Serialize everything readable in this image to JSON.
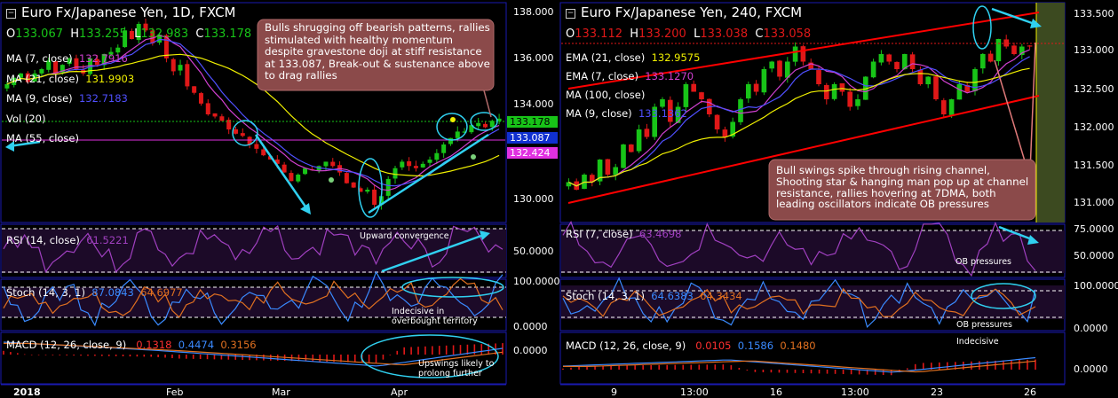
{
  "colors": {
    "bg": "#000000",
    "border": "#1a1ab0",
    "grid": "#ffffff",
    "up": "#18c418",
    "down": "#e01818",
    "ma7": "#d040d0",
    "ma21": "#b070c0",
    "ma9": "#5050ff",
    "ma55": "#f0f000",
    "callout": "#8b4a4a",
    "cyan": "#30d0f0",
    "channel": "#ff0000",
    "panel": "#1c0a28"
  },
  "left_chart": {
    "title": "Euro Fx/Japanese Yen, 1D, FXCM",
    "ohlc": {
      "o_label": "O",
      "o": "133.067",
      "h_label": "H",
      "h": "133.255",
      "l_label": "L",
      "l": "132.983",
      "c_label": "C",
      "c": "133.178"
    },
    "legend": [
      {
        "label": "MA (7, close)",
        "value": "132.7916",
        "color": "#d040d0"
      },
      {
        "label": "MA (21, close)",
        "value": "131.9903",
        "color": "#f0f000"
      },
      {
        "label": "MA (9, close)",
        "value": "132.7183",
        "color": "#5050ff"
      },
      {
        "label": "Vol (20)",
        "value": "",
        "color": "#ffffff"
      },
      {
        "label": "MA (55, close)",
        "value": "",
        "color": "#ffffff"
      }
    ],
    "callout": "Bulls shrugging off bearish patterns, rallies stimulated with healthy momentum despite gravestone doji at stiff resistance at 133.087, Break-out & sustenance above to drag rallies",
    "price_ticks": [
      "138.000",
      "136.000",
      "134.000",
      "130.000"
    ],
    "price_tags": [
      {
        "label": "133.178",
        "color": "#18c418"
      },
      {
        "label": "133.087",
        "color": "#1030d0"
      },
      {
        "label": "132.424",
        "color": "#e030e0"
      }
    ],
    "x_ticks": [
      "2018",
      "Feb",
      "Mar",
      "Apr"
    ],
    "rsi": {
      "label": "RSI (14, close)",
      "value": "61.5221",
      "note": "Upward convergence",
      "ticks": [
        "50.0000"
      ]
    },
    "stoch": {
      "label": "Stoch (14, 3, 1)",
      "k": "87.0843",
      "d": "64.6977",
      "note": "Indecisive in overbought territory",
      "ticks": [
        "100.0000",
        "0.0000"
      ]
    },
    "macd": {
      "label": "MACD (12, 26, close, 9)",
      "v1": "0.1318",
      "v2": "0.4474",
      "v3": "0.3156",
      "note": "Upswings likely to prolong further",
      "ticks": [
        "0.0000"
      ]
    }
  },
  "right_chart": {
    "title": "Euro Fx/Japanese Yen, 240, FXCM",
    "ohlc": {
      "o_label": "O",
      "o": "133.112",
      "h_label": "H",
      "h": "133.200",
      "l_label": "L",
      "l": "133.038",
      "c_label": "C",
      "c": "133.058"
    },
    "legend": [
      {
        "label": "EMA (21, close)",
        "value": "132.9575",
        "color": "#f0f000"
      },
      {
        "label": "EMA (7, close)",
        "value": "133.1270",
        "color": "#d040d0"
      },
      {
        "label": "MA (100, close)",
        "value": "",
        "color": "#ffffff"
      },
      {
        "label": "MA (9, close)",
        "value": "133.1362",
        "color": "#5050ff"
      }
    ],
    "callout": "Bull swings spike through rising channel, Shooting star & hanging man pop up at channel resistance, rallies hovering at 7DMA, both leading oscillators indicate OB pressures",
    "price_ticks": [
      "133.500",
      "133.000",
      "132.500",
      "132.000",
      "131.500",
      "131.000"
    ],
    "x_ticks": [
      "9",
      "13:00",
      "16",
      "13:00",
      "23",
      "26"
    ],
    "rsi": {
      "label": "RSI (7, close)",
      "value": "63.4698",
      "note": "OB pressures",
      "ticks": [
        "75.0000",
        "50.0000"
      ]
    },
    "stoch": {
      "label": "Stoch (14, 3, 1)",
      "k": "64.6383",
      "d": "64.3434",
      "note": "OB pressures",
      "ticks": [
        "100.0000",
        "0.0000"
      ]
    },
    "macd": {
      "label": "MACD (12, 26, close, 9)",
      "v1": "0.0105",
      "v2": "0.1586",
      "v3": "0.1480",
      "note": "Indecisive",
      "ticks": [
        "0.0000"
      ]
    }
  },
  "chart_data": [
    {
      "type": "candlestick",
      "title": "Euro Fx/Japanese Yen, 1D, FXCM",
      "x_ticks": [
        "2018",
        "Feb",
        "Mar",
        "Apr"
      ],
      "ylim": [
        128.5,
        138.3
      ],
      "y_ticks": [
        130,
        134,
        136,
        138
      ],
      "closes": [
        134.8,
        135.1,
        135.3,
        134.9,
        135.3,
        135.5,
        135.9,
        135.3,
        135.7,
        136.0,
        135.5,
        135.3,
        136.0,
        135.7,
        136.2,
        136.3,
        136.5,
        137.3,
        136.9,
        137.6,
        137.3,
        136.7,
        137.1,
        136.0,
        135.4,
        135.7,
        134.7,
        134.4,
        133.9,
        133.4,
        133.3,
        133.1,
        132.7,
        132.5,
        132.4,
        132.0,
        131.8,
        131.5,
        131.3,
        131.1,
        130.7,
        130.3,
        130.6,
        130.9,
        130.8,
        131.0,
        131.2,
        131.0,
        130.7,
        130.2,
        130.0,
        129.8,
        129.9,
        129.2,
        129.6,
        130.4,
        130.9,
        131.2,
        131.0,
        130.9,
        131.1,
        131.3,
        131.6,
        132.0,
        132.3,
        132.6,
        132.6,
        132.9,
        133.0,
        132.8,
        133.1,
        133.2
      ]
    },
    {
      "type": "candlestick",
      "title": "Euro Fx/Japanese Yen, 240, FXCM",
      "x_ticks": [
        "9",
        "13:00",
        "16",
        "13:00",
        "23",
        "26"
      ],
      "ylim": [
        130.8,
        133.6
      ],
      "y_ticks": [
        133.5,
        133,
        132.5,
        132,
        131.5,
        131
      ],
      "closes": [
        131.3,
        131.2,
        131.4,
        131.3,
        131.6,
        131.4,
        131.5,
        131.8,
        131.7,
        132.0,
        131.9,
        132.3,
        132.4,
        132.1,
        132.3,
        132.6,
        132.5,
        132.4,
        132.2,
        132.0,
        131.9,
        132.1,
        132.4,
        132.6,
        132.5,
        132.8,
        132.9,
        132.7,
        132.9,
        133.1,
        132.9,
        132.8,
        132.6,
        132.4,
        132.6,
        132.5,
        132.3,
        132.4,
        132.7,
        132.9,
        133.0,
        132.9,
        132.8,
        133.0,
        132.8,
        132.6,
        132.7,
        132.4,
        132.2,
        132.4,
        132.6,
        132.5,
        132.8,
        133.0,
        132.9,
        133.2,
        133.1,
        133.0,
        133.1,
        133.1
      ]
    }
  ]
}
